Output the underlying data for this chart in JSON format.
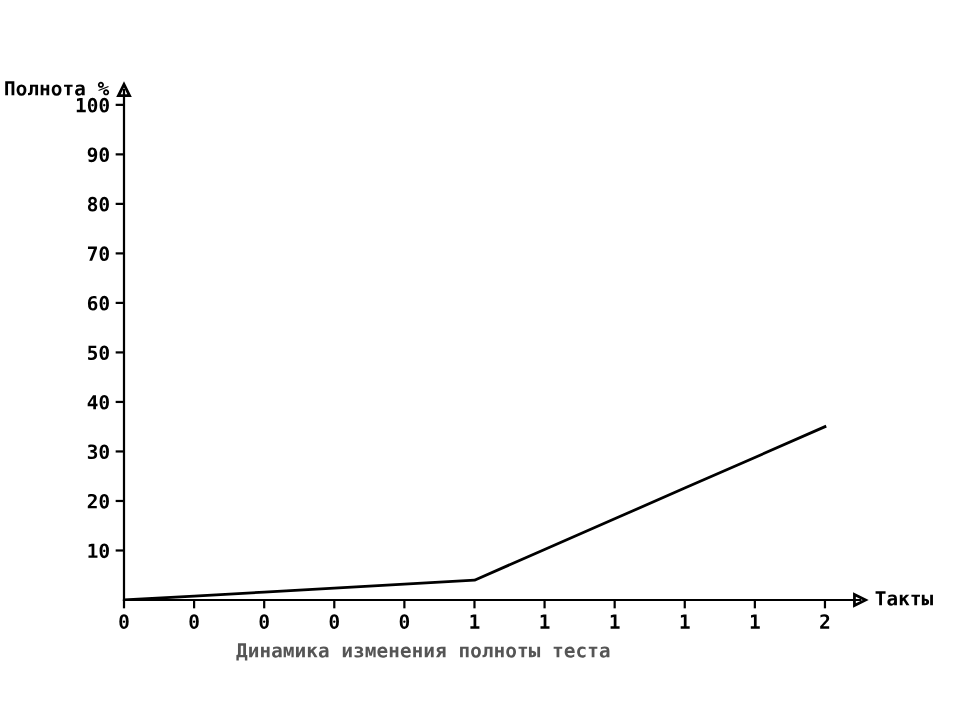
{
  "chart_data": {
    "type": "line",
    "title": "Динамика изменения полноты теста",
    "xlabel": "Такты",
    "ylabel": "Полнота %",
    "categories": [
      "0",
      "0",
      "0",
      "0",
      "0",
      "1",
      "1",
      "1",
      "1",
      "1",
      "2"
    ],
    "series": [
      {
        "color": "#000000",
        "values": [
          0,
          0.8,
          1.6,
          2.4,
          3.2,
          4,
          10.2,
          16.4,
          22.6,
          28.8,
          35
        ]
      }
    ],
    "ylim": [
      0,
      103
    ],
    "yticks": [
      10,
      20,
      30,
      40,
      50,
      60,
      70,
      80,
      90,
      100
    ],
    "grid": false,
    "legend": false,
    "marker": "none",
    "line_style": "solid"
  }
}
